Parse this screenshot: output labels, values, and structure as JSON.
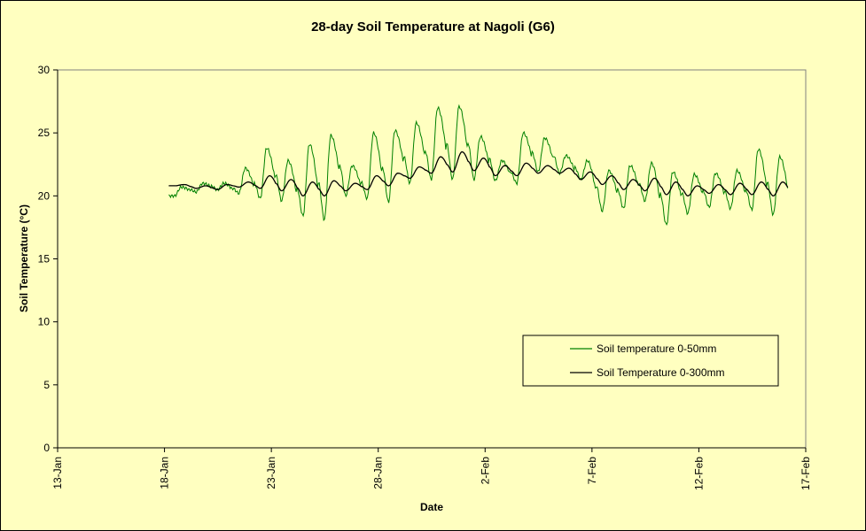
{
  "chart_data": {
    "type": "line",
    "title": "28-day Soil Temperature at Nagoli (G6)",
    "xlabel": "Date",
    "ylabel": "Soil Temperature (°C)",
    "x_ticks": [
      "13-Jan",
      "18-Jan",
      "23-Jan",
      "28-Jan",
      "2-Feb",
      "7-Feb",
      "12-Feb",
      "17-Feb"
    ],
    "y_ticks": [
      "0",
      "5",
      "10",
      "15",
      "20",
      "25",
      "30"
    ],
    "xlim_days": [
      0,
      35
    ],
    "ylim": [
      0,
      30
    ],
    "grid": false,
    "legend_position": "bottom-right inside plot",
    "colors": {
      "background": "#ffffc0",
      "series_0_50": "#008000",
      "series_0_300": "#000000"
    },
    "series": [
      {
        "name": "Soil temperature 0-50mm",
        "color": "#008000",
        "daily": [
          {
            "day": "18-Jan",
            "min": 20.0,
            "max": 20.7
          },
          {
            "day": "19-Jan",
            "min": 20.3,
            "max": 21.0
          },
          {
            "day": "20-Jan",
            "min": 20.5,
            "max": 21.0
          },
          {
            "day": "21-Jan",
            "min": 20.2,
            "max": 22.2
          },
          {
            "day": "22-Jan",
            "min": 19.8,
            "max": 23.8
          },
          {
            "day": "23-Jan",
            "min": 19.6,
            "max": 22.8
          },
          {
            "day": "24-Jan",
            "min": 18.4,
            "max": 24.1
          },
          {
            "day": "25-Jan",
            "min": 18.1,
            "max": 24.8
          },
          {
            "day": "26-Jan",
            "min": 20.0,
            "max": 22.4
          },
          {
            "day": "27-Jan",
            "min": 19.8,
            "max": 25.0
          },
          {
            "day": "28-Jan",
            "min": 19.5,
            "max": 25.2
          },
          {
            "day": "29-Jan",
            "min": 21.0,
            "max": 25.8
          },
          {
            "day": "30-Jan",
            "min": 21.3,
            "max": 27.0
          },
          {
            "day": "31-Jan",
            "min": 21.3,
            "max": 27.1
          },
          {
            "day": "1-Feb",
            "min": 21.3,
            "max": 24.7
          },
          {
            "day": "2-Feb",
            "min": 21.2,
            "max": 22.8
          },
          {
            "day": "3-Feb",
            "min": 21.0,
            "max": 25.0
          },
          {
            "day": "4-Feb",
            "min": 21.9,
            "max": 24.6
          },
          {
            "day": "5-Feb",
            "min": 21.8,
            "max": 23.2
          },
          {
            "day": "6-Feb",
            "min": 21.3,
            "max": 22.8
          },
          {
            "day": "7-Feb",
            "min": 18.8,
            "max": 22.0
          },
          {
            "day": "8-Feb",
            "min": 19.0,
            "max": 22.4
          },
          {
            "day": "9-Feb",
            "min": 19.6,
            "max": 22.6
          },
          {
            "day": "10-Feb",
            "min": 17.7,
            "max": 21.9
          },
          {
            "day": "11-Feb",
            "min": 18.6,
            "max": 21.7
          },
          {
            "day": "12-Feb",
            "min": 19.1,
            "max": 21.8
          },
          {
            "day": "13-Feb",
            "min": 19.0,
            "max": 22.0
          },
          {
            "day": "14-Feb",
            "min": 18.9,
            "max": 23.7
          },
          {
            "day": "15-Feb",
            "min": 18.5,
            "max": 23.1
          }
        ]
      },
      {
        "name": "Soil Temperature 0-300mm",
        "color": "#000000",
        "daily": [
          {
            "day": "18-Jan",
            "min": 20.8,
            "max": 20.9
          },
          {
            "day": "19-Jan",
            "min": 20.6,
            "max": 20.8
          },
          {
            "day": "20-Jan",
            "min": 20.5,
            "max": 20.9
          },
          {
            "day": "21-Jan",
            "min": 20.7,
            "max": 21.1
          },
          {
            "day": "22-Jan",
            "min": 20.6,
            "max": 21.6
          },
          {
            "day": "23-Jan",
            "min": 20.4,
            "max": 21.3
          },
          {
            "day": "24-Jan",
            "min": 20.0,
            "max": 21.1
          },
          {
            "day": "25-Jan",
            "min": 20.0,
            "max": 21.2
          },
          {
            "day": "26-Jan",
            "min": 20.4,
            "max": 21.0
          },
          {
            "day": "27-Jan",
            "min": 20.5,
            "max": 21.6
          },
          {
            "day": "28-Jan",
            "min": 20.8,
            "max": 21.8
          },
          {
            "day": "29-Jan",
            "min": 21.4,
            "max": 22.3
          },
          {
            "day": "30-Jan",
            "min": 21.8,
            "max": 23.1
          },
          {
            "day": "31-Jan",
            "min": 21.9,
            "max": 23.5
          },
          {
            "day": "1-Feb",
            "min": 22.0,
            "max": 23.0
          },
          {
            "day": "2-Feb",
            "min": 21.6,
            "max": 22.4
          },
          {
            "day": "3-Feb",
            "min": 21.6,
            "max": 22.6
          },
          {
            "day": "4-Feb",
            "min": 21.8,
            "max": 22.4
          },
          {
            "day": "5-Feb",
            "min": 21.8,
            "max": 22.2
          },
          {
            "day": "6-Feb",
            "min": 21.3,
            "max": 21.9
          },
          {
            "day": "7-Feb",
            "min": 20.9,
            "max": 21.6
          },
          {
            "day": "8-Feb",
            "min": 20.5,
            "max": 21.3
          },
          {
            "day": "9-Feb",
            "min": 20.4,
            "max": 21.4
          },
          {
            "day": "10-Feb",
            "min": 20.1,
            "max": 21.1
          },
          {
            "day": "11-Feb",
            "min": 20.0,
            "max": 20.8
          },
          {
            "day": "12-Feb",
            "min": 20.2,
            "max": 20.9
          },
          {
            "day": "13-Feb",
            "min": 20.1,
            "max": 21.0
          },
          {
            "day": "14-Feb",
            "min": 20.1,
            "max": 21.1
          },
          {
            "day": "15-Feb",
            "min": 20.0,
            "max": 21.1
          }
        ]
      }
    ]
  }
}
